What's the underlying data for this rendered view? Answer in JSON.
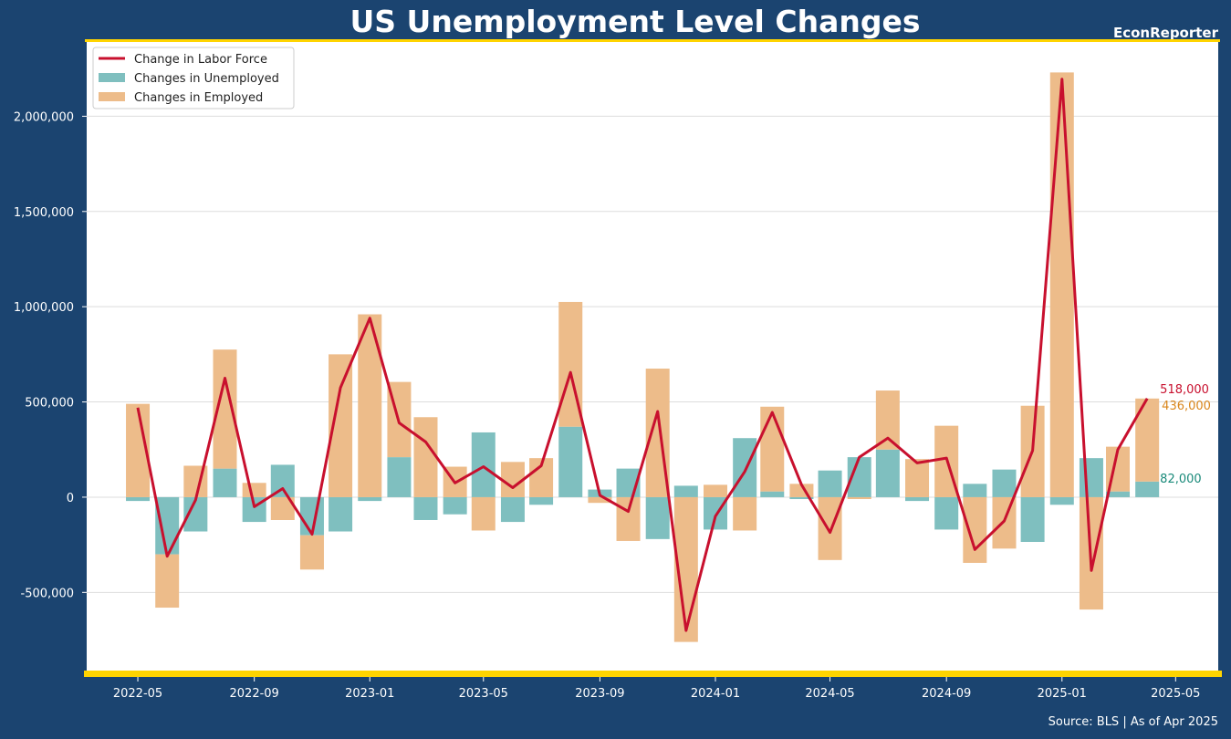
{
  "header": {
    "title": "US Unemployment Level Changes",
    "brand": "EconReporter"
  },
  "footer": {
    "source": "Source: BLS | As of Apr 2025"
  },
  "colors": {
    "background": "#1b4470",
    "plot_bg": "#ffffff",
    "accent_border": "#ffd400",
    "labor_force": "#c8102e",
    "unemployed": "#7fbfbf",
    "employed": "#edbc8a",
    "unemployed_label": "#1a8a7a",
    "employed_label": "#d9861c"
  },
  "chart_data": {
    "type": "bar",
    "stacked": true,
    "x_type": "date",
    "x": [
      "2022-05",
      "2022-06",
      "2022-07",
      "2022-08",
      "2022-09",
      "2022-10",
      "2022-11",
      "2022-12",
      "2023-01",
      "2023-02",
      "2023-03",
      "2023-04",
      "2023-05",
      "2023-06",
      "2023-07",
      "2023-08",
      "2023-09",
      "2023-10",
      "2023-11",
      "2023-12",
      "2024-01",
      "2024-02",
      "2024-03",
      "2024-04",
      "2024-05",
      "2024-06",
      "2024-07",
      "2024-08",
      "2024-09",
      "2024-10",
      "2024-11",
      "2024-12",
      "2025-01",
      "2025-02",
      "2025-03",
      "2025-04"
    ],
    "series": [
      {
        "name": "Changes in Unemployed",
        "kind": "bar",
        "values": [
          -20000,
          -300000,
          -180000,
          150000,
          -130000,
          170000,
          -200000,
          -180000,
          -20000,
          210000,
          -120000,
          -90000,
          340000,
          -130000,
          -40000,
          370000,
          40000,
          150000,
          -220000,
          60000,
          -170000,
          310000,
          30000,
          -10000,
          140000,
          210000,
          250000,
          -20000,
          -170000,
          70000,
          145000,
          -235000,
          -40000,
          205000,
          30000,
          82000
        ]
      },
      {
        "name": "Changes in Employed",
        "kind": "bar",
        "values": [
          490000,
          -280000,
          165000,
          625000,
          75000,
          -120000,
          -180000,
          750000,
          960000,
          395000,
          420000,
          160000,
          -175000,
          185000,
          205000,
          655000,
          -30000,
          -230000,
          675000,
          -760000,
          65000,
          -175000,
          445000,
          70000,
          -330000,
          -10000,
          310000,
          200000,
          375000,
          -345000,
          -270000,
          480000,
          2230000,
          -590000,
          235000,
          436000
        ]
      },
      {
        "name": "Change in Labor Force",
        "kind": "line",
        "values": [
          470000,
          -310000,
          -15000,
          625000,
          -50000,
          45000,
          -195000,
          575000,
          940000,
          390000,
          290000,
          75000,
          160000,
          50000,
          165000,
          655000,
          10000,
          -75000,
          450000,
          -700000,
          -100000,
          135000,
          445000,
          65000,
          -185000,
          210000,
          310000,
          180000,
          205000,
          -275000,
          -125000,
          245000,
          2195000,
          -385000,
          250000,
          518000
        ]
      }
    ],
    "end_labels": {
      "labor_force": "518,000",
      "employed": "436,000",
      "unemployed": "82,000"
    },
    "ylim": [
      -920000,
      2390000
    ],
    "yticks": [
      -500000,
      0,
      500000,
      1000000,
      1500000,
      2000000
    ],
    "ytick_labels": [
      "-500,000",
      "0",
      "500,000",
      "1,000,000",
      "1,500,000",
      "2,000,000"
    ],
    "xticks": [
      "2022-05",
      "2022-09",
      "2023-01",
      "2023-05",
      "2023-09",
      "2024-01",
      "2024-05",
      "2024-09",
      "2025-01",
      "2025-05"
    ],
    "xlim": [
      "2022-03-08",
      "2025-06-15"
    ],
    "grid": "horizontal",
    "legend": {
      "position": "top-left",
      "entries": [
        "Change in Labor Force",
        "Changes in Unemployed",
        "Changes in Employed"
      ]
    }
  }
}
